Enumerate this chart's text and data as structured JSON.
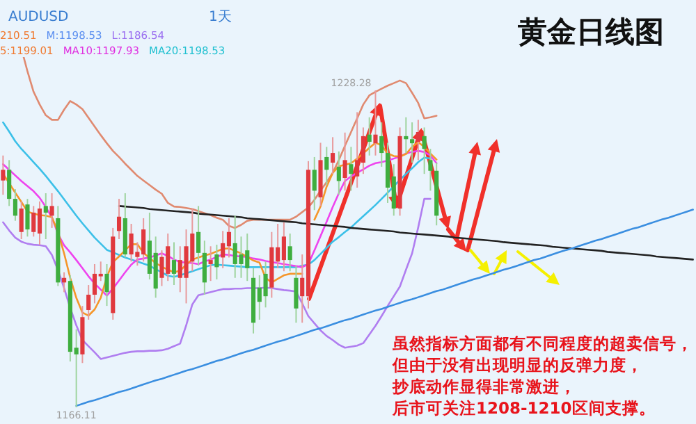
{
  "chart_data": {
    "type": "candlestick",
    "title": "黄金日线图",
    "categories": [
      null,
      null,
      null,
      null,
      null,
      null,
      null,
      null,
      null,
      null,
      null,
      null,
      null,
      null,
      null,
      null,
      null,
      null,
      null,
      null,
      null,
      null,
      null,
      null,
      null,
      null,
      null,
      null,
      null,
      null,
      null,
      null,
      null,
      null,
      null,
      null,
      null,
      null,
      null,
      null,
      null,
      null,
      null,
      null,
      null,
      null,
      null,
      null,
      null,
      null,
      null,
      null,
      null,
      null,
      null,
      null,
      null,
      null,
      null,
      null,
      null,
      null,
      null,
      null,
      null,
      null,
      null,
      null,
      null,
      null,
      null,
      null,
      null,
      null,
      null,
      null,
      null,
      null,
      null,
      null,
      null,
      null,
      null,
      null,
      null,
      null,
      null,
      null,
      null,
      null,
      null,
      null,
      null,
      null,
      null,
      null,
      null,
      null,
      null,
      null,
      null,
      null,
      null,
      null,
      null,
      null,
      null,
      null,
      null,
      null,
      null,
      null,
      null,
      null
    ],
    "ohlc": [
      [
        1210.6,
        1215.5,
        1207.8,
        1212.7
      ],
      [
        1212.7,
        1214.6,
        1205.6,
        1207.0
      ],
      [
        1207.0,
        1208.9,
        1202.7,
        1203.7
      ],
      [
        1200.5,
        1206.5,
        1199.1,
        1205.1
      ],
      [
        1205.9,
        1207.0,
        1199.6,
        1201.0
      ],
      [
        1200.5,
        1205.6,
        1199.6,
        1204.3
      ],
      [
        1200.2,
        1206.5,
        1198.0,
        1205.1
      ],
      [
        1205.6,
        1208.1,
        1199.1,
        1204.3
      ],
      [
        1203.7,
        1208.1,
        1201.3,
        1205.6
      ],
      [
        1203.2,
        1205.6,
        1189.9,
        1190.6
      ],
      [
        1190.6,
        1192.6,
        1188.7,
        1191.5
      ],
      [
        1190.9,
        1192.0,
        1175.1,
        1177.0
      ],
      [
        1177.8,
        1181.4,
        1166.11,
        1176.5
      ],
      [
        1176.5,
        1186.0,
        1174.8,
        1183.8
      ],
      [
        1185.2,
        1190.1,
        1183.3,
        1188.2
      ],
      [
        1188.2,
        1194.2,
        1186.5,
        1192.3
      ],
      [
        1191.8,
        1194.7,
        1190.9,
        1192.3
      ],
      [
        1192.3,
        1194.2,
        1186.0,
        1188.7
      ],
      [
        1184.6,
        1201.3,
        1183.3,
        1199.6
      ],
      [
        1200.7,
        1207.0,
        1199.1,
        1203.5
      ],
      [
        1203.2,
        1208.1,
        1195.5,
        1196.1
      ],
      [
        1196.1,
        1202.1,
        1194.7,
        1200.2
      ],
      [
        1195.6,
        1198.5,
        1193.9,
        1196.6
      ],
      [
        1196.1,
        1203.2,
        1194.7,
        1201.0
      ],
      [
        1198.8,
        1204.3,
        1191.2,
        1192.3
      ],
      [
        1196.4,
        1199.6,
        1187.6,
        1189.4
      ],
      [
        1191.5,
        1196.9,
        1189.9,
        1195.6
      ],
      [
        1192.3,
        1200.2,
        1190.9,
        1197.7
      ],
      [
        1195.0,
        1198.5,
        1190.1,
        1192.3
      ],
      [
        1191.5,
        1197.7,
        1188.7,
        1195.0
      ],
      [
        1191.5,
        1201.0,
        1186.5,
        1197.7
      ],
      [
        1194.7,
        1205.1,
        1192.8,
        1200.2
      ],
      [
        1200.5,
        1205.6,
        1193.9,
        1196.4
      ],
      [
        1196.4,
        1198.8,
        1188.2,
        1190.6
      ],
      [
        1194.2,
        1197.7,
        1190.9,
        1195.0
      ],
      [
        1196.1,
        1198.0,
        1191.2,
        1193.6
      ],
      [
        1195.5,
        1200.7,
        1193.4,
        1198.3
      ],
      [
        1197.7,
        1203.2,
        1195.5,
        1200.5
      ],
      [
        1198.3,
        1203.7,
        1191.5,
        1194.2
      ],
      [
        1196.1,
        1199.6,
        1191.5,
        1194.2
      ],
      [
        1196.9,
        1200.2,
        1190.9,
        1193.4
      ],
      [
        1191.5,
        1193.4,
        1180.6,
        1182.7
      ],
      [
        1189.6,
        1192.0,
        1183.3,
        1186.8
      ],
      [
        1192.3,
        1194.7,
        1185.7,
        1187.9
      ],
      [
        1189.6,
        1200.5,
        1187.6,
        1197.5
      ],
      [
        1194.7,
        1202.1,
        1193.4,
        1197.5
      ],
      [
        1195.0,
        1202.4,
        1192.8,
        1199.6
      ],
      [
        1197.7,
        1200.2,
        1192.8,
        1195.0
      ],
      [
        1191.5,
        1193.9,
        1182.7,
        1185.5
      ],
      [
        1187.9,
        1196.1,
        1182.7,
        1191.5
      ],
      [
        1187.9,
        1214.4,
        1185.5,
        1212.7
      ],
      [
        1212.7,
        1215.2,
        1204.8,
        1208.6
      ],
      [
        1207.3,
        1218.0,
        1205.6,
        1214.6
      ],
      [
        1215.2,
        1217.2,
        1209.7,
        1212.7
      ],
      [
        1214.1,
        1219.1,
        1211.9,
        1216.0
      ],
      [
        1213.3,
        1216.3,
        1207.8,
        1210.5
      ],
      [
        1211.1,
        1220.0,
        1208.6,
        1214.6
      ],
      [
        1213.8,
        1217.2,
        1208.6,
        1211.9
      ],
      [
        1211.4,
        1224.0,
        1209.2,
        1214.6
      ],
      [
        1214.1,
        1221.0,
        1211.9,
        1219.3
      ],
      [
        1219.6,
        1223.0,
        1215.5,
        1218.2
      ],
      [
        1217.9,
        1228.28,
        1215.5,
        1219.6
      ],
      [
        1219.3,
        1222.0,
        1213.3,
        1216.0
      ],
      [
        1216.0,
        1218.0,
        1206.2,
        1209.2
      ],
      [
        1211.4,
        1213.8,
        1203.7,
        1205.1
      ],
      [
        1205.1,
        1221.0,
        1203.7,
        1219.3
      ],
      [
        1219.3,
        1223.0,
        1216.0,
        1218.7
      ],
      [
        1218.7,
        1222.0,
        1214.1,
        1217.9
      ],
      [
        1218.2,
        1222.5,
        1214.6,
        1220.1
      ],
      [
        1219.3,
        1221.0,
        1211.9,
        1216.8
      ],
      [
        1214.6,
        1216.8,
        1208.6,
        1212.5
      ],
      [
        1212.5,
        1214.1,
        1201.8,
        1203.7
      ],
      null,
      null,
      null,
      null,
      null,
      null,
      null,
      null,
      null,
      null,
      null,
      null,
      null,
      null,
      null,
      null,
      null,
      null,
      null,
      null,
      null,
      null,
      null,
      null,
      null,
      null,
      null,
      null,
      null,
      null,
      null,
      null,
      null,
      null,
      null,
      null,
      null,
      null,
      null,
      null,
      null,
      null
    ],
    "series": [
      {
        "type": "line",
        "color": "#e08a70",
        "values": [
          null,
          null,
          null,
          1236.5,
          1232.0,
          1228.0,
          1225.5,
          1223.4,
          1222.5,
          1222.5,
          1224.5,
          1226.2,
          1225.5,
          1224.6,
          1222.9,
          1221.2,
          1219.5,
          1217.9,
          1216.4,
          1215.2,
          1213.9,
          1212.7,
          1211.5,
          1210.6,
          1209.7,
          1208.8,
          1208.0,
          1206.2,
          1205.5,
          1205.4,
          1205.2,
          1205.0,
          1204.6,
          1204.2,
          1203.8,
          1203.3,
          1202.9,
          1201.7,
          1201.3,
          1201.9,
          1202.7,
          1202.9,
          1202.9,
          1202.9,
          1202.9,
          1202.9,
          1202.9,
          1202.9,
          1203.5,
          1204.4,
          1205.3,
          1206.8,
          1208.6,
          1210.3,
          1212.1,
          1214.6,
          1217.4,
          1220.1,
          1222.8,
          1225.5,
          1227.3,
          1228.0,
          1228.6,
          1229.2,
          1229.7,
          1230.2,
          1229.7,
          1227.8,
          1225.8,
          1222.8,
          1223.0,
          1223.3,
          null,
          null,
          null,
          null,
          null,
          null,
          null,
          null,
          null,
          null,
          null,
          null,
          null,
          null,
          null,
          null,
          null,
          null,
          null,
          null,
          null,
          null,
          null,
          null,
          null,
          null,
          null,
          null,
          null,
          null,
          null,
          null,
          null,
          null,
          null,
          null,
          null,
          null,
          null,
          null,
          null,
          null
        ]
      },
      {
        "type": "line",
        "color": "#b07ef0",
        "values": [
          1202.4,
          1200.8,
          1199.4,
          1198.6,
          1198.2,
          1198.0,
          1197.9,
          1197.7,
          1196.0,
          1193.0,
          1189.5,
          1185.6,
          1182.2,
          1179.3,
          1178.1,
          1176.9,
          1175.6,
          1175.9,
          1176.2,
          1176.5,
          1176.8,
          1177.0,
          1177.1,
          1177.1,
          1177.2,
          1177.2,
          1177.3,
          1177.6,
          1178.1,
          1178.6,
          1182.2,
          1186.3,
          1188.1,
          1188.4,
          1188.7,
          1189.0,
          1189.3,
          1189.3,
          1189.4,
          1189.4,
          1189.5,
          1189.5,
          1189.5,
          1189.6,
          1189.5,
          1189.3,
          1189.1,
          1189.0,
          1188.8,
          1186.5,
          1184.0,
          1182.6,
          1181.2,
          1180.1,
          1179.3,
          1178.4,
          1177.8,
          1178.0,
          1178.2,
          1178.7,
          1180.4,
          1182.1,
          1184.0,
          1186.0,
          1187.9,
          1189.8,
          1193.1,
          1196.3,
          1201.4,
          1207.0,
          1207.0,
          null,
          null,
          null,
          null,
          null,
          null,
          null,
          null,
          null,
          null,
          null,
          null,
          null,
          null,
          null,
          null,
          null,
          null,
          null,
          null,
          null,
          null,
          null,
          null,
          null,
          null,
          null,
          null,
          null,
          null,
          null,
          null,
          null,
          null,
          null,
          null,
          null,
          null,
          null,
          null,
          null,
          null,
          null
        ]
      },
      {
        "type": "line",
        "color": "#3cc0e8",
        "values": [
          1222.0,
          1220.2,
          1218.3,
          1216.8,
          1215.5,
          1214.2,
          1212.9,
          1211.5,
          1210.0,
          1208.5,
          1206.9,
          1205.3,
          1203.7,
          1202.2,
          1200.8,
          1199.4,
          1198.2,
          1197.0,
          1196.5,
          1196.0,
          1195.5,
          1195.1,
          1194.7,
          1194.3,
          1193.9,
          1193.2,
          1192.6,
          1191.9,
          1191.7,
          1192.0,
          1192.4,
          1192.8,
          1193.2,
          1193.6,
          1194.0,
          1194.1,
          1194.0,
          1193.9,
          1193.8,
          1193.7,
          1193.6,
          1193.6,
          1193.6,
          1193.6,
          1193.6,
          1193.6,
          1193.6,
          1193.6,
          1193.6,
          1193.9,
          1194.1,
          1195.0,
          1196.2,
          1197.4,
          1198.6,
          1199.5,
          1200.5,
          1201.4,
          1202.5,
          1203.6,
          1204.7,
          1205.8,
          1207.0,
          1208.2,
          1209.5,
          1210.7,
          1211.9,
          1213.0,
          1214.2,
          1215.1,
          1214.9,
          null,
          null,
          null,
          null,
          null,
          null,
          null,
          null,
          null,
          null,
          null,
          null,
          null,
          null,
          null,
          null,
          null,
          null,
          null,
          null,
          null,
          null,
          null,
          null,
          null,
          null,
          null,
          null,
          null,
          null,
          null,
          null,
          null,
          null,
          null,
          null,
          null,
          null,
          null,
          null,
          null,
          null,
          null
        ]
      },
      {
        "type": "line",
        "color": "#ee44ee",
        "values": [
          1213.8,
          1212.7,
          1211.6,
          1210.5,
          1209.5,
          1208.5,
          1207.2,
          1205.4,
          1203.4,
          1200.1,
          1197.9,
          1196.5,
          1195.0,
          1193.4,
          1191.8,
          1190.4,
          1189.2,
          1188.0,
          1189.4,
          1191.0,
          1192.6,
          1194.1,
          1195.1,
          1195.3,
          1195.5,
          1195.9,
          1196.3,
          1195.8,
          1195.1,
          1194.6,
          1194.5,
          1194.4,
          1194.2,
          1194.7,
          1195.1,
          1195.6,
          1196.1,
          1196.0,
          1195.8,
          1195.7,
          1195.6,
          1195.3,
          1195.1,
          1194.8,
          1194.6,
          1194.4,
          1194.2,
          1194.0,
          1193.8,
          1193.6,
          1194.2,
          1196.9,
          1199.7,
          1202.5,
          1205.4,
          1208.1,
          1210.5,
          1211.4,
          1212.1,
          1212.8,
          1213.5,
          1214.0,
          1214.2,
          1214.5,
          1214.9,
          1215.3,
          1215.9,
          1216.2,
          1216.4,
          1216.2,
          1215.5,
          1214.0,
          null,
          null,
          null,
          null,
          null,
          null,
          null,
          null,
          null,
          null,
          null,
          null,
          null,
          null,
          null,
          null,
          null,
          null,
          null,
          null,
          null,
          null,
          null,
          null,
          null,
          null,
          null,
          null,
          null,
          null,
          null,
          null,
          null,
          null,
          null,
          null,
          null,
          null,
          null,
          null,
          null,
          null
        ]
      },
      {
        "type": "line",
        "color": "#f5962a",
        "values": [
          1211.9,
          1210.1,
          1208.2,
          1206.4,
          1204.5,
          1204.1,
          1203.8,
          1203.7,
          1203.4,
          1200.5,
          1196.3,
          1191.5,
          1187.6,
          1184.7,
          1184.1,
          1185.3,
          1187.6,
          1191.7,
          1194.6,
          1195.7,
          1196.9,
          1198.1,
          1198.1,
          1196.4,
          1195.4,
          1194.4,
          1193.7,
          1193.1,
          1192.6,
          1192.9,
          1194.1,
          1195.1,
          1195.5,
          1195.9,
          1196.2,
          1196.7,
          1197.2,
          1197.3,
          1196.8,
          1196.3,
          1195.6,
          1194.9,
          1194.5,
          1191.5,
          1190.6,
          1191.3,
          1192.0,
          1192.3,
          1192.3,
          1192.3,
          null,
          1202.9,
          1205.5,
          1209.4,
          1212.1,
          1213.4,
          1213.7,
          1214.0,
          1214.9,
          1215.9,
          1217.0,
          1218.0,
          1217.5,
          1215.9,
          1215.4,
          1215.3,
          1215.8,
          1217.2,
          1218.1,
          1217.2,
          1215.9,
          1214.7,
          null,
          null,
          null,
          null,
          null,
          null,
          null,
          null,
          null,
          null,
          null,
          null,
          null,
          null,
          null,
          null,
          null,
          null,
          null,
          null,
          null,
          null,
          null,
          null,
          null,
          null,
          null,
          null,
          null,
          null,
          null,
          null,
          null,
          null,
          null,
          null,
          null,
          null,
          null,
          null,
          null,
          null
        ]
      },
      {
        "type": "line",
        "color": "#222222",
        "values": [
          null,
          null,
          null,
          null,
          null,
          null,
          null,
          null,
          null,
          null,
          null,
          null,
          null,
          null,
          null,
          null,
          null,
          null,
          null,
          1205.6,
          1205.5,
          1205.4,
          1205.3,
          1205.2,
          1205.0,
          1204.9,
          1204.8,
          1204.7,
          1204.6,
          1204.5,
          1204.4,
          1204.3,
          1204.1,
          1204.0,
          1203.9,
          1203.8,
          1203.7,
          1203.6,
          1203.5,
          1203.4,
          1203.2,
          1203.1,
          1203.0,
          1202.9,
          1202.8,
          1202.7,
          1202.6,
          1202.5,
          1202.4,
          1202.2,
          1202.1,
          1202.0,
          1201.9,
          1201.8,
          1201.7,
          1201.6,
          1201.5,
          1201.3,
          1201.2,
          1201.1,
          1201.0,
          1200.9,
          1200.8,
          1200.7,
          1200.6,
          1200.4,
          1200.3,
          1200.2,
          1200.1,
          1200.0,
          1199.9,
          1199.8,
          1199.7,
          1199.6,
          1199.4,
          1199.3,
          1199.2,
          1199.1,
          1199.0,
          1198.9,
          1198.8,
          1198.7,
          1198.5,
          1198.4,
          1198.3,
          1198.2,
          1198.1,
          1198.0,
          1197.9,
          1197.8,
          1197.6,
          1197.5,
          1197.4,
          1197.3,
          1197.2,
          1197.1,
          1197.0,
          1196.9,
          1196.8,
          1196.6,
          1196.5,
          1196.4,
          1196.3,
          1196.2,
          1196.1,
          1196.0,
          1195.9,
          1195.7,
          1195.6,
          1195.5,
          1195.4,
          1195.3,
          1195.2,
          1195.1
        ]
      },
      {
        "type": "line",
        "color": "#3a8ee0",
        "values": [
          null,
          null,
          null,
          null,
          null,
          null,
          null,
          null,
          null,
          null,
          null,
          null,
          1166.4,
          1166.8,
          1167.2,
          1167.5,
          1167.9,
          1168.3,
          1168.7,
          1169.1,
          1169.4,
          1169.8,
          1170.2,
          1170.6,
          1171.0,
          1171.4,
          1171.7,
          1172.1,
          1172.5,
          1172.9,
          1173.3,
          1173.6,
          1174.0,
          1174.4,
          1174.8,
          1175.2,
          1175.5,
          1175.9,
          1176.3,
          1176.7,
          1177.1,
          1177.4,
          1177.8,
          1178.2,
          1178.6,
          1179.0,
          1179.3,
          1179.7,
          1180.1,
          1180.5,
          1180.9,
          1181.3,
          1181.6,
          1182.0,
          1182.4,
          1182.8,
          1183.2,
          1183.5,
          1183.9,
          1184.3,
          1184.7,
          1185.1,
          1185.4,
          1185.8,
          1186.2,
          1186.6,
          1187.0,
          1187.3,
          1187.7,
          1188.1,
          1188.5,
          1188.9,
          1189.2,
          1189.6,
          1190.0,
          1190.4,
          1190.8,
          1191.2,
          1191.5,
          1191.9,
          1192.3,
          1192.7,
          1193.1,
          1193.4,
          1193.8,
          1194.2,
          1194.6,
          1195.0,
          1195.3,
          1195.7,
          1196.1,
          1196.5,
          1196.9,
          1197.2,
          1197.6,
          1198.0,
          1198.4,
          1198.8,
          1199.1,
          1199.5,
          1199.9,
          1200.3,
          1200.7,
          1201.1,
          1201.4,
          1201.8,
          1202.2,
          1202.6,
          1203.0,
          1203.3,
          1203.7,
          1204.1,
          1204.5,
          1204.9
        ]
      }
    ],
    "annotations": [
      "AUDUSD",
      "1天",
      "210.51",
      "M:1198.53",
      "L:1186.54",
      "5:1199.01",
      "MA10:1197.93",
      "MA20:1198.53",
      {
        "text": "1166.11",
        "y": 1166.11
      },
      "1228.28",
      "虽然指标方面都有不同程度的超卖信号，但由于没有出现明显的反弹力度，抄底动作显得非常激进，后市可关注1208-1210区间支撑。"
    ]
  }
}
